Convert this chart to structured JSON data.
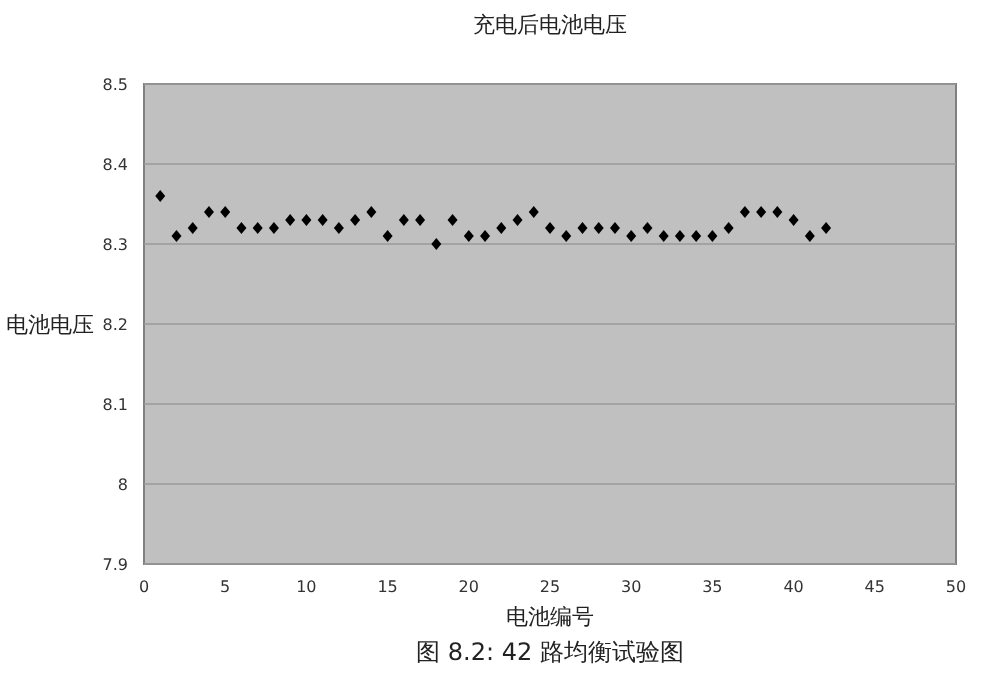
{
  "chart_data": {
    "type": "scatter",
    "title": "充电后电池电压",
    "xlabel": "电池编号",
    "ylabel": "电池电压",
    "annotations": [
      "图 8.2: 42 路均衡试验图"
    ],
    "x": [
      1,
      2,
      3,
      4,
      5,
      6,
      7,
      8,
      9,
      10,
      11,
      12,
      13,
      14,
      15,
      16,
      17,
      18,
      19,
      20,
      21,
      22,
      23,
      24,
      25,
      26,
      27,
      28,
      29,
      30,
      31,
      32,
      33,
      34,
      35,
      36,
      37,
      38,
      39,
      40,
      41,
      42
    ],
    "series": [
      {
        "color": "#000000",
        "values": [
          8.36,
          8.31,
          8.32,
          8.34,
          8.34,
          8.32,
          8.32,
          8.32,
          8.33,
          8.33,
          8.33,
          8.32,
          8.33,
          8.34,
          8.31,
          8.33,
          8.33,
          8.3,
          8.33,
          8.31,
          8.31,
          8.32,
          8.33,
          8.34,
          8.32,
          8.31,
          8.32,
          8.32,
          8.32,
          8.31,
          8.32,
          8.31,
          8.31,
          8.31,
          8.31,
          8.32,
          8.34,
          8.34,
          8.34,
          8.33,
          8.31,
          8.32
        ]
      }
    ],
    "xlim": [
      0,
      50
    ],
    "xticks": [
      0,
      5,
      10,
      15,
      20,
      25,
      30,
      35,
      40,
      45,
      50
    ],
    "ylim": [
      7.9,
      8.5
    ],
    "yticks": [
      7.9,
      8,
      8.1,
      8.2,
      8.3,
      8.4,
      8.5
    ],
    "grid": "y",
    "marker": "diamond"
  }
}
